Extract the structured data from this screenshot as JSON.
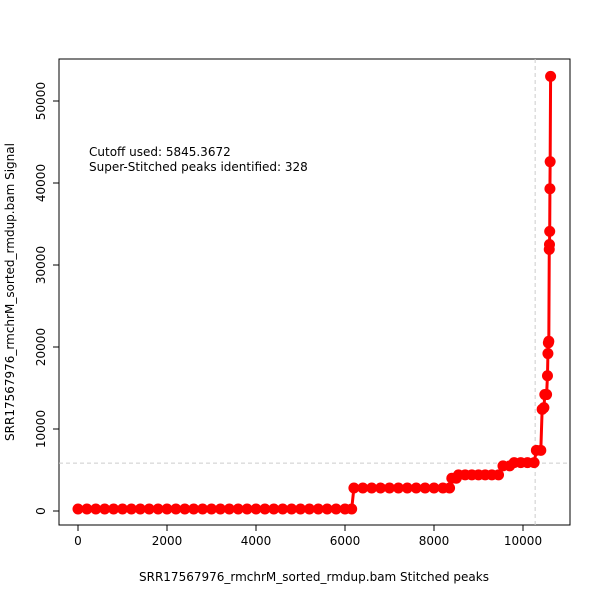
{
  "chart_data": {
    "type": "line",
    "xlabel": "SRR17567976_rmchrM_sorted_rmdup.bam  Stitched peaks",
    "ylabel": "SRR17567976_rmchrM_sorted_rmdup.bam  Signal",
    "annotations": [
      "Cutoff used:  5845.3672",
      "Super-Stitched peaks identified:  328"
    ],
    "hline": 5845.3672,
    "vline": 10273,
    "xlim": [
      -427,
      11056
    ],
    "ylim": [
      -1707,
      55122
    ],
    "xticks": [
      0,
      2000,
      4000,
      6000,
      8000,
      10000
    ],
    "yticks": [
      0,
      10000,
      20000,
      30000,
      40000,
      50000
    ],
    "series": [
      {
        "color": "#ff0000",
        "x": [
          0,
          200,
          400,
          600,
          800,
          1000,
          1200,
          1400,
          1600,
          1800,
          2000,
          2200,
          2400,
          2600,
          2800,
          3000,
          3200,
          3400,
          3600,
          3800,
          4000,
          4200,
          4400,
          4600,
          4800,
          5000,
          5200,
          5400,
          5600,
          5800,
          6000,
          6150,
          6200,
          6400,
          6600,
          6800,
          7000,
          7200,
          7400,
          7600,
          7800,
          8000,
          8200,
          8350,
          8400,
          8500,
          8550,
          8700,
          8850,
          9000,
          9150,
          9300,
          9450,
          9550,
          9700,
          9800,
          9950,
          10100,
          10250,
          10300,
          10400,
          10430,
          10470,
          10490,
          10530,
          10550,
          10560,
          10570,
          10580,
          10590,
          10595,
          10600,
          10605,
          10610,
          10620
        ],
        "values": [
          250,
          250,
          250,
          250,
          250,
          250,
          250,
          250,
          250,
          250,
          250,
          250,
          250,
          250,
          250,
          250,
          250,
          250,
          250,
          250,
          250,
          250,
          250,
          250,
          250,
          250,
          250,
          250,
          250,
          250,
          250,
          250,
          2800,
          2800,
          2800,
          2800,
          2800,
          2800,
          2800,
          2800,
          2800,
          2800,
          2800,
          2800,
          4000,
          4000,
          4400,
          4400,
          4400,
          4400,
          4400,
          4400,
          4400,
          5500,
          5500,
          5900,
          5900,
          5900,
          5900,
          7400,
          7400,
          12400,
          12600,
          14200,
          14200,
          16500,
          19200,
          20500,
          20700,
          31900,
          32500,
          34100,
          39300,
          42600,
          53000
        ]
      }
    ]
  }
}
